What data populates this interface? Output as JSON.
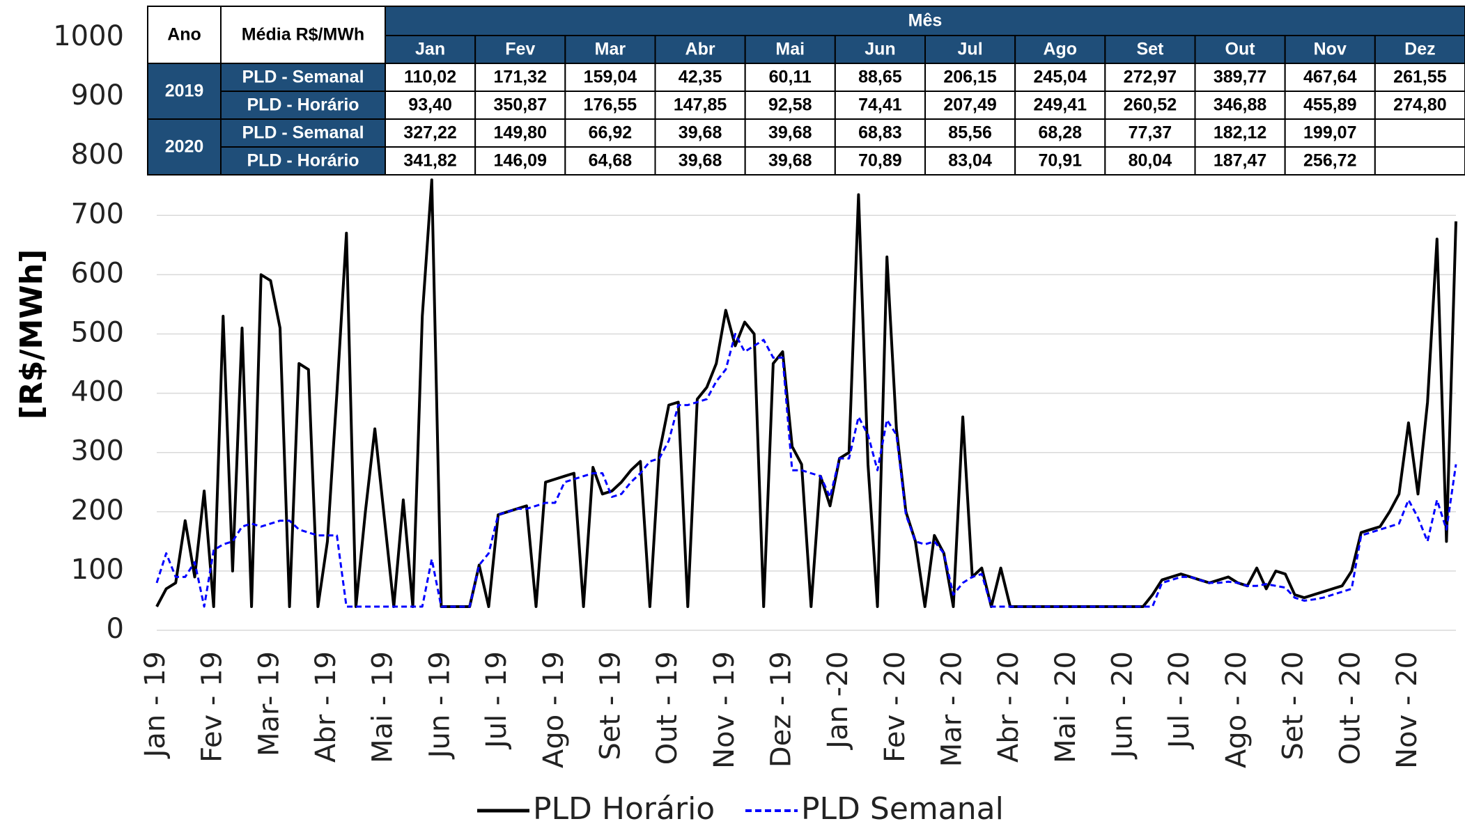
{
  "chart_data": {
    "type": "line",
    "y_label": "[R$/MWh]",
    "ylim": [
      0,
      1000
    ],
    "yticks": [
      0,
      100,
      200,
      300,
      400,
      500,
      600,
      700,
      800,
      900,
      1000
    ],
    "grid": true,
    "legend": "bottom",
    "categories": [
      "Jan - 19",
      null,
      null,
      null,
      null,
      null,
      "Fev - 19",
      null,
      null,
      null,
      null,
      null,
      "Mar- 19",
      null,
      null,
      null,
      null,
      null,
      "Abr - 19",
      null,
      null,
      null,
      null,
      null,
      "Mai - 19",
      null,
      null,
      null,
      null,
      null,
      "Jun - 19",
      null,
      null,
      null,
      null,
      null,
      "Jul - 19",
      null,
      null,
      null,
      null,
      null,
      "Ago - 19",
      null,
      null,
      null,
      null,
      null,
      "Set - 19",
      null,
      null,
      null,
      null,
      null,
      "Out - 19",
      null,
      null,
      null,
      null,
      null,
      "Nov - 19",
      null,
      null,
      null,
      null,
      null,
      "Dez - 19",
      null,
      null,
      null,
      null,
      null,
      "Jan -20",
      null,
      null,
      null,
      null,
      null,
      "Fev - 20",
      null,
      null,
      null,
      null,
      null,
      "Mar - 20",
      null,
      null,
      null,
      null,
      null,
      "Abr - 20",
      null,
      null,
      null,
      null,
      null,
      "Mai - 20",
      null,
      null,
      null,
      null,
      null,
      "Jun - 20",
      null,
      null,
      null,
      null,
      null,
      "Jul - 20",
      null,
      null,
      null,
      null,
      null,
      "Ago - 20",
      null,
      null,
      null,
      null,
      null,
      "Set - 20",
      null,
      null,
      null,
      null,
      null,
      "Out - 20",
      null,
      null,
      null,
      null,
      null,
      "Nov - 20",
      null,
      null,
      null,
      null,
      null
    ],
    "series": [
      {
        "name": "PLD Horário",
        "color": "#000000",
        "dash": false,
        "values": [
          40,
          70,
          80,
          185,
          90,
          235,
          40,
          530,
          100,
          510,
          40,
          600,
          590,
          510,
          40,
          450,
          440,
          40,
          150,
          400,
          670,
          40,
          200,
          340,
          190,
          40,
          220,
          40,
          530,
          760,
          40,
          40,
          40,
          40,
          110,
          40,
          195,
          200,
          205,
          210,
          40,
          250,
          255,
          260,
          265,
          40,
          275,
          230,
          235,
          250,
          270,
          285,
          40,
          300,
          380,
          385,
          40,
          390,
          410,
          450,
          540,
          480,
          520,
          500,
          40,
          450,
          470,
          310,
          280,
          40,
          260,
          210,
          290,
          300,
          735,
          280,
          40,
          630,
          340,
          200,
          150,
          40,
          160,
          130,
          40,
          360,
          90,
          105,
          40,
          105,
          40,
          40,
          40,
          40,
          40,
          40,
          40,
          40,
          40,
          40,
          40,
          40,
          40,
          40,
          40,
          60,
          85,
          90,
          95,
          90,
          85,
          80,
          85,
          90,
          80,
          75,
          105,
          70,
          100,
          95,
          60,
          55,
          60,
          65,
          70,
          75,
          100,
          165,
          170,
          175,
          200,
          230,
          350,
          230,
          385,
          660,
          150,
          690
        ]
      },
      {
        "name": "PLD Semanal",
        "color": "#0000ff",
        "dash": true,
        "values": [
          80,
          130,
          90,
          90,
          115,
          40,
          135,
          145,
          150,
          175,
          180,
          175,
          180,
          185,
          185,
          170,
          165,
          160,
          160,
          160,
          40,
          40,
          40,
          40,
          40,
          40,
          40,
          40,
          40,
          120,
          40,
          40,
          40,
          40,
          110,
          130,
          195,
          200,
          205,
          205,
          210,
          215,
          215,
          250,
          255,
          260,
          265,
          265,
          225,
          230,
          250,
          265,
          285,
          290,
          320,
          380,
          380,
          385,
          390,
          420,
          440,
          500,
          470,
          480,
          490,
          460,
          460,
          270,
          270,
          265,
          260,
          225,
          290,
          290,
          360,
          330,
          270,
          355,
          330,
          195,
          150,
          145,
          150,
          130,
          60,
          80,
          90,
          95,
          40,
          40,
          40,
          40,
          40,
          40,
          40,
          40,
          40,
          40,
          40,
          40,
          40,
          40,
          40,
          40,
          40,
          40,
          80,
          85,
          90,
          90,
          85,
          80,
          80,
          82,
          80,
          75,
          75,
          78,
          75,
          72,
          55,
          50,
          52,
          55,
          60,
          65,
          70,
          160,
          165,
          170,
          175,
          180,
          220,
          190,
          150,
          220,
          170,
          280
        ]
      }
    ]
  },
  "table": {
    "ano": "Ano",
    "media": "Média R$/MWh",
    "mes": "Mês",
    "months": [
      "Jan",
      "Fev",
      "Mar",
      "Abr",
      "Mai",
      "Jun",
      "Jul",
      "Ago",
      "Set",
      "Out",
      "Nov",
      "Dez"
    ],
    "groups": [
      {
        "year": "2019",
        "rows": [
          {
            "label": "PLD - Semanal",
            "values": [
              "110,02",
              "171,32",
              "159,04",
              "42,35",
              "60,11",
              "88,65",
              "206,15",
              "245,04",
              "272,97",
              "389,77",
              "467,64",
              "261,55"
            ]
          },
          {
            "label": "PLD - Horário",
            "values": [
              "93,40",
              "350,87",
              "176,55",
              "147,85",
              "92,58",
              "74,41",
              "207,49",
              "249,41",
              "260,52",
              "346,88",
              "455,89",
              "274,80"
            ]
          }
        ]
      },
      {
        "year": "2020",
        "rows": [
          {
            "label": "PLD - Semanal",
            "values": [
              "327,22",
              "149,80",
              "66,92",
              "39,68",
              "39,68",
              "68,83",
              "85,56",
              "68,28",
              "77,37",
              "182,12",
              "199,07"
            ]
          },
          {
            "label": "PLD - Horário",
            "values": [
              "341,82",
              "146,09",
              "64,68",
              "39,68",
              "39,68",
              "70,89",
              "83,04",
              "70,91",
              "80,04",
              "187,47",
              "256,72"
            ]
          }
        ]
      }
    ]
  }
}
